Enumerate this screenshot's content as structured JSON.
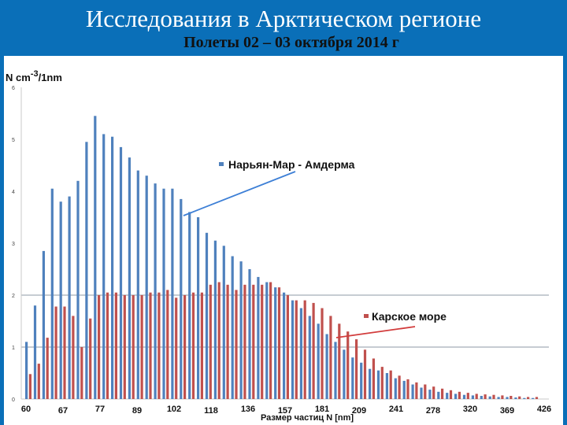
{
  "slide": {
    "title": "Исследования в Арктическом регионе",
    "subtitle": "Полеты 02 – 03 октября 2014 г"
  },
  "chart_data": {
    "type": "bar",
    "ylabel_base": "N cm",
    "ylabel_exp": "-3",
    "ylabel_tail": "/1nm",
    "xlabel": "Размер частиц N [nm]",
    "y_ticks": [
      "0",
      "1",
      "2",
      "3",
      "4",
      "5",
      "6"
    ],
    "ylim": [
      0,
      6
    ],
    "x_tick_labels": [
      "60",
      "67",
      "77",
      "89",
      "102",
      "118",
      "136",
      "157",
      "181",
      "209",
      "241",
      "278",
      "320",
      "369",
      "426"
    ],
    "gridlines_at": [
      1,
      2
    ],
    "colors": {
      "blue": "#4f81bd",
      "red": "#c0504d",
      "grid": "#8c9aa6",
      "arrow": "#3d7fd6"
    },
    "series": [
      {
        "name": "Нарьян-Мар - Амдерма",
        "color": "#4f81bd",
        "values": [
          1.1,
          1.8,
          2.85,
          4.05,
          3.8,
          3.9,
          4.2,
          4.95,
          5.45,
          5.1,
          5.05,
          4.85,
          4.65,
          4.4,
          4.3,
          4.15,
          4.05,
          4.05,
          3.85,
          3.6,
          3.5,
          3.2,
          3.05,
          2.95,
          2.75,
          2.65,
          2.5,
          2.35,
          2.25,
          2.15,
          2.05,
          1.9,
          1.75,
          1.6,
          1.45,
          1.25,
          1.1,
          0.95,
          0.8,
          0.7,
          0.58,
          0.55,
          0.5,
          0.4,
          0.35,
          0.28,
          0.22,
          0.18,
          0.14,
          0.12,
          0.1,
          0.08,
          0.07,
          0.06,
          0.05,
          0.04,
          0.04,
          0.03,
          0.02,
          0.02
        ]
      },
      {
        "name": "Карское море",
        "color": "#c0504d",
        "values": [
          0.48,
          0.68,
          1.18,
          1.78,
          1.78,
          1.6,
          1.0,
          1.55,
          2.0,
          2.05,
          2.05,
          2.0,
          2.0,
          2.0,
          2.05,
          2.05,
          2.1,
          1.95,
          2.0,
          2.05,
          2.05,
          2.2,
          2.25,
          2.2,
          2.1,
          2.2,
          2.2,
          2.2,
          2.25,
          2.15,
          2.0,
          1.9,
          1.9,
          1.85,
          1.75,
          1.6,
          1.45,
          1.3,
          1.15,
          0.95,
          0.78,
          0.62,
          0.55,
          0.45,
          0.38,
          0.32,
          0.28,
          0.24,
          0.2,
          0.17,
          0.14,
          0.12,
          0.1,
          0.09,
          0.08,
          0.07,
          0.06,
          0.05,
          0.04,
          0.04
        ]
      }
    ],
    "annotations": [
      {
        "text": "Нарьян-Мар - Амдерма",
        "series": 0
      },
      {
        "text": "Карское море",
        "series": 1
      }
    ]
  }
}
